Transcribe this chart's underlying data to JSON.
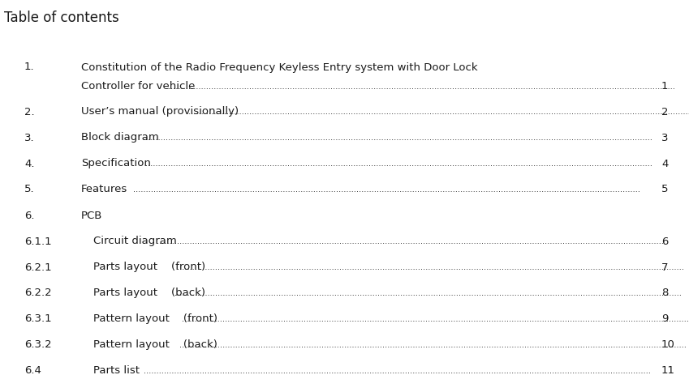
{
  "title": "Table of contents",
  "background_color": "#ffffff",
  "text_color": "#1a1a1a",
  "title_fontsize": 12,
  "body_fontsize": 9.5,
  "entries": [
    {
      "number": "1.",
      "text": "Constitution of the Radio Frequency Keyless Entry system with Door Lock",
      "text2": "Controller for vehicle",
      "dots_after_text2": true,
      "page": "1",
      "has_second_line": true,
      "indent": false
    },
    {
      "number": "2.",
      "text": "User’s manual (provisionally)",
      "text2": null,
      "dots_after_text2": false,
      "page": "2",
      "has_second_line": false,
      "indent": false
    },
    {
      "number": "3.",
      "text": "Block diagram",
      "text2": null,
      "dots_after_text2": false,
      "page": "3",
      "has_second_line": false,
      "indent": false
    },
    {
      "number": "4.",
      "text": "Specification",
      "text2": null,
      "dots_after_text2": false,
      "page": "4",
      "has_second_line": false,
      "indent": false
    },
    {
      "number": "5.",
      "text": "Features",
      "text2": null,
      "dots_after_text2": false,
      "page": "5",
      "has_second_line": false,
      "indent": false
    },
    {
      "number": "6.",
      "text": "PCB",
      "text2": null,
      "dots_after_text2": false,
      "page": null,
      "has_second_line": false,
      "indent": false
    },
    {
      "number": "6.1.1",
      "text": "Circuit diagram",
      "text2": null,
      "dots_after_text2": false,
      "page": "6",
      "has_second_line": false,
      "indent": true
    },
    {
      "number": "6.2.1",
      "text": "Parts layout    (front)",
      "text2": null,
      "dots_after_text2": false,
      "page": "7",
      "has_second_line": false,
      "indent": true
    },
    {
      "number": "6.2.2",
      "text": "Parts layout    (back)",
      "text2": null,
      "dots_after_text2": false,
      "page": "8",
      "has_second_line": false,
      "indent": true
    },
    {
      "number": "6.3.1",
      "text": "Pattern layout    (front)",
      "text2": null,
      "dots_after_text2": false,
      "page": "9",
      "has_second_line": false,
      "indent": true
    },
    {
      "number": "6.3.2",
      "text": "Pattern layout    (back)",
      "text2": null,
      "dots_after_text2": false,
      "page": "10",
      "has_second_line": false,
      "indent": true
    },
    {
      "number": "6.4",
      "text": "Parts list",
      "text2": null,
      "dots_after_text2": false,
      "page": "11",
      "has_second_line": false,
      "indent": true
    }
  ]
}
